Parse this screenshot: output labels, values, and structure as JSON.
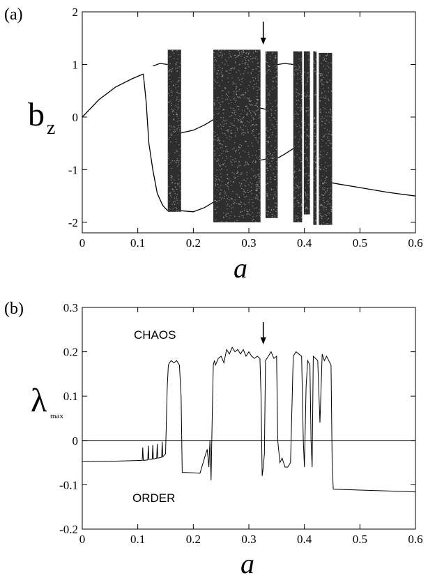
{
  "chart_data": [
    {
      "type": "scatter",
      "panel_label": "(a)",
      "xlabel": "a",
      "ylabel": "b",
      "ylabel_sub": "z",
      "xlim": [
        0,
        0.6
      ],
      "ylim": [
        -2.2,
        2
      ],
      "xticks": [
        "0",
        "0.1",
        "0.2",
        "0.3",
        "0.4",
        "0.5",
        "0.6"
      ],
      "yticks": [
        "-2",
        "-1",
        "0",
        "1",
        "2"
      ],
      "arrow_x": 0.326,
      "chaotic_bands": [
        {
          "x": [
            0.154,
            0.178
          ],
          "y": [
            -1.8,
            1.28
          ]
        },
        {
          "x": [
            0.236,
            0.321
          ],
          "y": [
            -2.0,
            1.28
          ]
        },
        {
          "x": [
            0.33,
            0.352
          ],
          "y": [
            -1.92,
            1.25
          ]
        },
        {
          "x": [
            0.38,
            0.396
          ],
          "y": [
            -2.0,
            1.25
          ]
        },
        {
          "x": [
            0.399,
            0.41
          ],
          "y": [
            -1.85,
            1.25
          ]
        },
        {
          "x": [
            0.416,
            0.422
          ],
          "y": [
            -2.05,
            1.25
          ]
        },
        {
          "x": [
            0.426,
            0.45
          ],
          "y": [
            -2.05,
            1.22
          ]
        }
      ],
      "branches": [
        {
          "x": [
            0,
            0.03,
            0.06,
            0.09,
            0.11
          ],
          "y": [
            0,
            0.33,
            0.57,
            0.73,
            0.82
          ]
        },
        {
          "x": [
            0.11,
            0.115,
            0.12,
            0.127
          ],
          "y": [
            0.82,
            0.3,
            -0.5,
            -1.0
          ]
        },
        {
          "x": [
            0.127,
            0.135,
            0.145,
            0.154
          ],
          "y": [
            -1.0,
            -1.45,
            -1.68,
            -1.78
          ]
        },
        {
          "x": [
            0.127,
            0.14,
            0.154
          ],
          "y": [
            0.97,
            1.02,
            1.0
          ]
        },
        {
          "x": [
            0.178,
            0.2,
            0.22,
            0.236
          ],
          "y": [
            -0.3,
            -0.25,
            -0.15,
            -0.05
          ]
        },
        {
          "x": [
            0.178,
            0.2,
            0.22,
            0.236
          ],
          "y": [
            -1.78,
            -1.8,
            -1.72,
            -1.62
          ]
        },
        {
          "x": [
            0.321,
            0.33
          ],
          "y": [
            0.17,
            0.15
          ]
        },
        {
          "x": [
            0.321,
            0.33
          ],
          "y": [
            -0.82,
            -0.8
          ]
        },
        {
          "x": [
            0.352,
            0.365,
            0.38
          ],
          "y": [
            1.0,
            1.02,
            1.0
          ]
        },
        {
          "x": [
            0.352,
            0.365,
            0.38
          ],
          "y": [
            -0.78,
            -0.7,
            -0.6
          ]
        },
        {
          "x": [
            0.45,
            0.46,
            0.5,
            0.55,
            0.6
          ],
          "y": [
            -1.25,
            -1.27,
            -1.34,
            -1.43,
            -1.5
          ]
        }
      ]
    },
    {
      "type": "line",
      "panel_label": "(b)",
      "xlabel": "a",
      "ylabel": "λ",
      "ylabel_sub": "max",
      "xlim": [
        0,
        0.6
      ],
      "ylim": [
        -0.2,
        0.3
      ],
      "xticks": [
        "0",
        "0.1",
        "0.2",
        "0.3",
        "0.4",
        "0.5",
        "0.6"
      ],
      "yticks": [
        "-0.2",
        "-0.1",
        "0",
        "0.1",
        "0.2",
        "0.3"
      ],
      "arrow_x": 0.326,
      "zero_line": true,
      "annotations": [
        "CHAOS",
        "ORDER"
      ],
      "x": [
        0,
        0.05,
        0.108,
        0.109,
        0.11,
        0.118,
        0.119,
        0.12,
        0.126,
        0.127,
        0.128,
        0.134,
        0.135,
        0.136,
        0.143,
        0.144,
        0.145,
        0.15,
        0.153,
        0.155,
        0.157,
        0.16,
        0.165,
        0.17,
        0.175,
        0.178,
        0.18,
        0.2,
        0.212,
        0.22,
        0.225,
        0.228,
        0.23,
        0.232,
        0.234,
        0.236,
        0.238,
        0.24,
        0.245,
        0.25,
        0.255,
        0.26,
        0.265,
        0.27,
        0.275,
        0.28,
        0.285,
        0.29,
        0.295,
        0.3,
        0.305,
        0.31,
        0.315,
        0.32,
        0.322,
        0.324,
        0.326,
        0.328,
        0.33,
        0.335,
        0.34,
        0.345,
        0.35,
        0.352,
        0.356,
        0.36,
        0.365,
        0.37,
        0.375,
        0.38,
        0.385,
        0.39,
        0.395,
        0.398,
        0.4,
        0.403,
        0.406,
        0.41,
        0.412,
        0.414,
        0.416,
        0.42,
        0.424,
        0.428,
        0.432,
        0.436,
        0.44,
        0.444,
        0.448,
        0.45,
        0.452,
        0.5,
        0.55,
        0.6
      ],
      "y": [
        -0.048,
        -0.047,
        -0.045,
        -0.016,
        -0.045,
        -0.044,
        -0.012,
        -0.043,
        -0.042,
        -0.01,
        -0.042,
        -0.04,
        -0.008,
        -0.04,
        -0.038,
        -0.003,
        -0.037,
        -0.03,
        0.12,
        0.17,
        0.175,
        0.18,
        0.175,
        0.18,
        0.17,
        0.1,
        -0.072,
        -0.073,
        -0.074,
        -0.04,
        -0.02,
        -0.06,
        0.0,
        -0.09,
        0.05,
        0.17,
        0.18,
        0.17,
        0.185,
        0.19,
        0.175,
        0.205,
        0.195,
        0.21,
        0.2,
        0.205,
        0.195,
        0.205,
        0.19,
        0.2,
        0.19,
        0.185,
        0.19,
        0.185,
        0.1,
        -0.08,
        -0.06,
        -0.03,
        0.18,
        0.19,
        0.2,
        0.185,
        0.19,
        0.0,
        -0.05,
        -0.04,
        -0.06,
        -0.06,
        -0.05,
        0.19,
        0.2,
        0.195,
        0.19,
        0.0,
        -0.06,
        0.12,
        0.18,
        0.17,
        0.0,
        -0.06,
        0.19,
        0.185,
        0.18,
        0.04,
        0.195,
        0.18,
        0.19,
        0.18,
        0.17,
        -0.05,
        -0.11,
        -0.112,
        -0.114,
        -0.116
      ]
    }
  ]
}
